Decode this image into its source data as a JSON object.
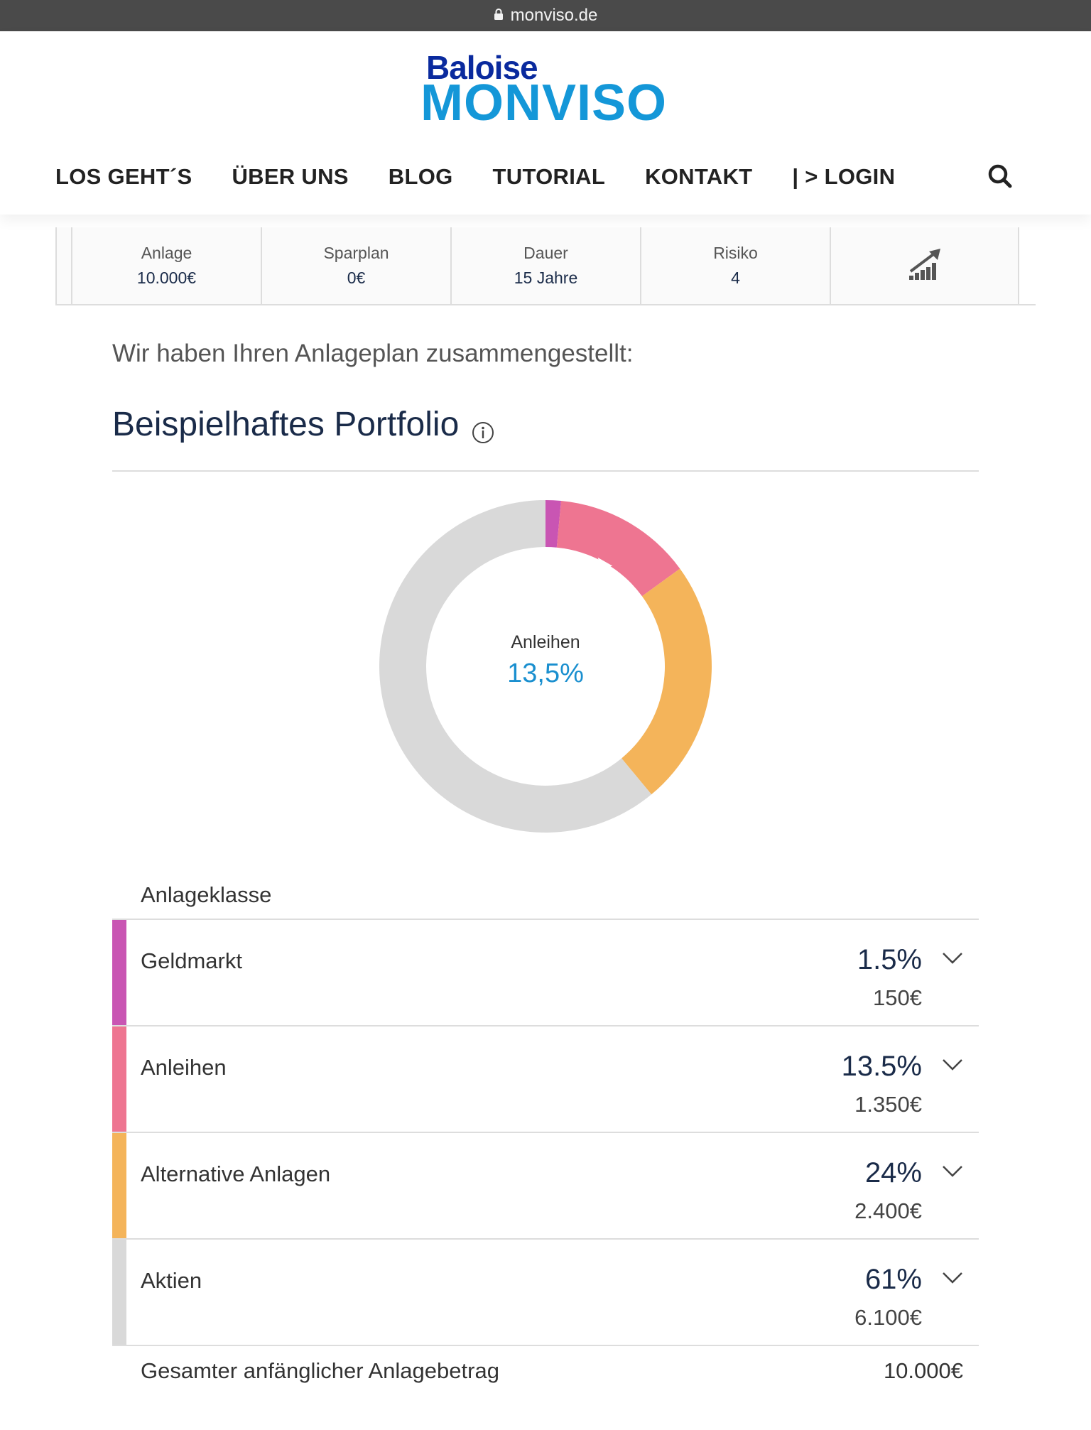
{
  "browser": {
    "url": "monviso.de",
    "lock_icon": "lock-icon"
  },
  "header": {
    "logo_top": "Baloise",
    "logo_bottom": "MONVISO",
    "nav": [
      {
        "label": "LOS GEHT´S"
      },
      {
        "label": "ÜBER UNS"
      },
      {
        "label": "BLOG"
      },
      {
        "label": "TUTORIAL"
      },
      {
        "label": "KONTAKT"
      },
      {
        "label": "| > LOGIN"
      }
    ],
    "search_icon": "search-icon"
  },
  "summary": [
    {
      "label": "Anlage",
      "value": "10.000€"
    },
    {
      "label": "Sparplan",
      "value": "0€"
    },
    {
      "label": "Dauer",
      "value": "15 Jahre"
    },
    {
      "label": "Risiko",
      "value": "4"
    },
    {
      "icon": "chart-growth-icon"
    }
  ],
  "intro": "Wir haben Ihren Anlageplan zusammengestellt:",
  "portfolio_title": "Beispielhaftes Portfolio",
  "info_icon": "info-icon",
  "donut": {
    "center_label": "Anleihen",
    "center_value": "13,5%",
    "colors": [
      "#c955b3",
      "#ee7591",
      "#f4b45a",
      "#d9d9d9"
    ]
  },
  "table": {
    "header": "Anlageklasse",
    "rows": [
      {
        "name": "Geldmarkt",
        "percent": "1.5%",
        "amount": "150€",
        "color": "#c955b3"
      },
      {
        "name": "Anleihen",
        "percent": "13.5%",
        "amount": "1.350€",
        "color": "#ee7591"
      },
      {
        "name": "Alternative Anlagen",
        "percent": "24%",
        "amount": "2.400€",
        "color": "#f4b45a"
      },
      {
        "name": "Aktien",
        "percent": "61%",
        "amount": "6.100€",
        "color": "#d9d9d9"
      }
    ],
    "total_label": "Gesamter anfänglicher Anlagebetrag",
    "total_value": "10.000€"
  },
  "chart_data": {
    "type": "pie",
    "categories": [
      "Geldmarkt",
      "Anleihen",
      "Alternative Anlagen",
      "Aktien"
    ],
    "values": [
      1.5,
      13.5,
      24,
      61
    ]
  }
}
